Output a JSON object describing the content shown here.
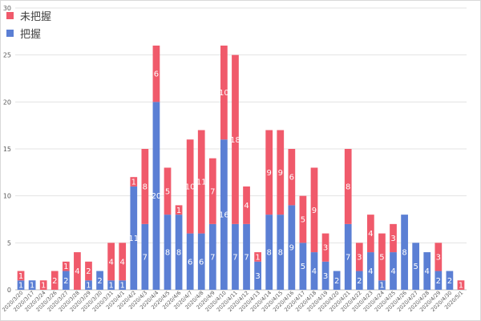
{
  "chart_data": {
    "type": "bar",
    "stacked": true,
    "title": "",
    "xlabel": "",
    "ylabel": "",
    "ylim": [
      0,
      30
    ],
    "yticks": [
      0,
      5,
      10,
      15,
      20,
      25,
      30
    ],
    "grid": true,
    "legend_position": "top-left",
    "colors": {
      "known": "#5b7fd4",
      "unknown": "#f05a6b"
    },
    "categories": [
      "2020/3/20",
      "2020/3/17",
      "2020/3/24",
      "2020/3/26",
      "2020/3/27",
      "2020/3/28",
      "2020/3/29",
      "2020/3/30",
      "2020/3/31",
      "2020/4/1",
      "2020/4/2",
      "2020/4/3",
      "2020/4/4",
      "2020/4/5",
      "2020/4/6",
      "2020/4/7",
      "2020/4/8",
      "2020/4/9",
      "2020/4/10",
      "2020/4/11",
      "2020/4/12",
      "2020/4/13",
      "2020/4/14",
      "2020/4/15",
      "2020/4/16",
      "2020/4/17",
      "2020/4/18",
      "2020/4/19",
      "2020/4/20",
      "2020/4/21",
      "2020/4/22",
      "2020/4/23",
      "2020/4/24",
      "2020/4/25",
      "2020/4/26",
      "2020/4/27",
      "2020/4/28",
      "2020/4/29",
      "2020/4/30",
      "2020/5/1"
    ],
    "series": [
      {
        "name": "把握",
        "key": "known",
        "values": [
          1,
          1,
          0,
          0,
          2,
          0,
          1,
          2,
          1,
          1,
          11,
          7,
          20,
          8,
          8,
          6,
          6,
          7,
          16,
          7,
          7,
          3,
          8,
          8,
          9,
          5,
          4,
          3,
          2,
          7,
          2,
          4,
          1,
          4,
          8,
          5,
          4,
          2,
          2,
          0
        ]
      },
      {
        "name": "未把握",
        "key": "unknown",
        "values": [
          1,
          0,
          1,
          2,
          1,
          4,
          2,
          0,
          4,
          4,
          1,
          8,
          6,
          5,
          1,
          10,
          11,
          7,
          10,
          18,
          4,
          1,
          9,
          9,
          6,
          5,
          9,
          3,
          0,
          8,
          3,
          4,
          5,
          3,
          0,
          0,
          0,
          3,
          0,
          1
        ]
      }
    ]
  }
}
